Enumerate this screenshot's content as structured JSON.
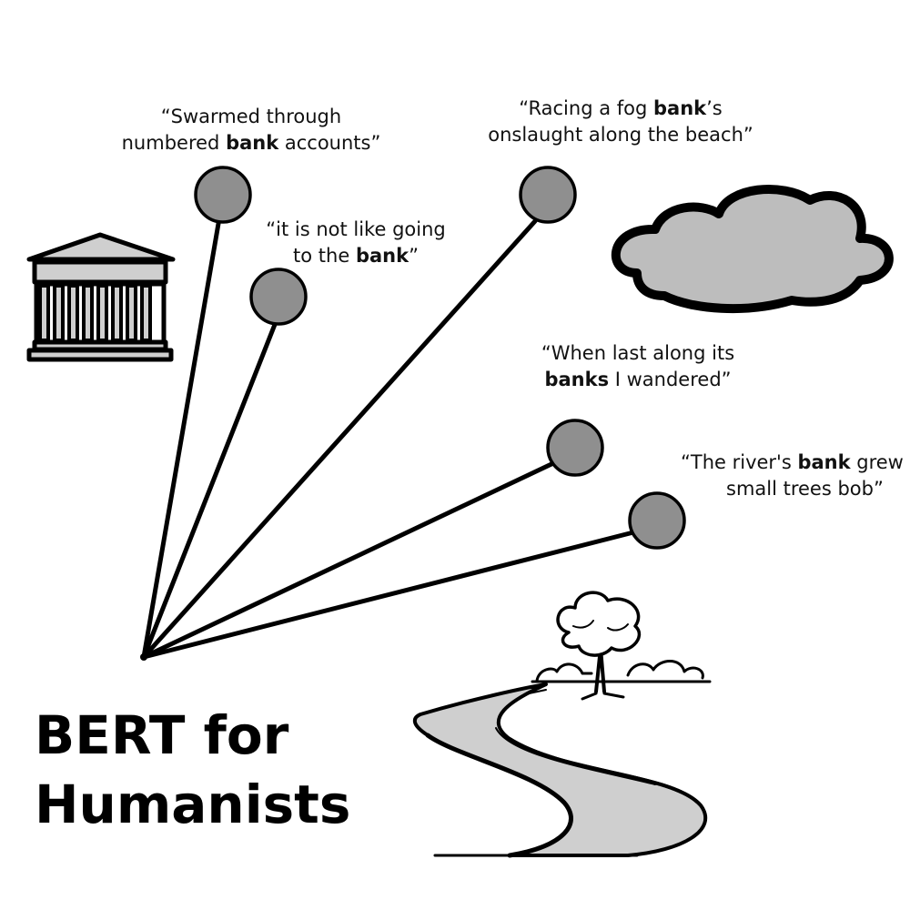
{
  "title": {
    "line1": "BERT for",
    "line2": "Humanists"
  },
  "quotes": [
    {
      "pre": "“Swarmed through",
      "mid_pre": "numbered ",
      "bold": "bank",
      "post": " accounts”"
    },
    {
      "pre": "“it is not like going",
      "mid_pre": "to the ",
      "bold": "bank",
      "post": "”"
    },
    {
      "pre": "“Racing a fog ",
      "bold": "bank",
      "post_line1": "’s",
      "line2": "onslaught along the beach”"
    },
    {
      "pre": "“When last along its",
      "bold": "banks",
      "post": " I wandered”"
    },
    {
      "pre": "“The river's ",
      "bold": "bank",
      "post_line1": " grew",
      "line2": "small trees bob”"
    }
  ],
  "icons": [
    "bank-building-icon",
    "cloud-icon",
    "river-landscape-icon"
  ]
}
